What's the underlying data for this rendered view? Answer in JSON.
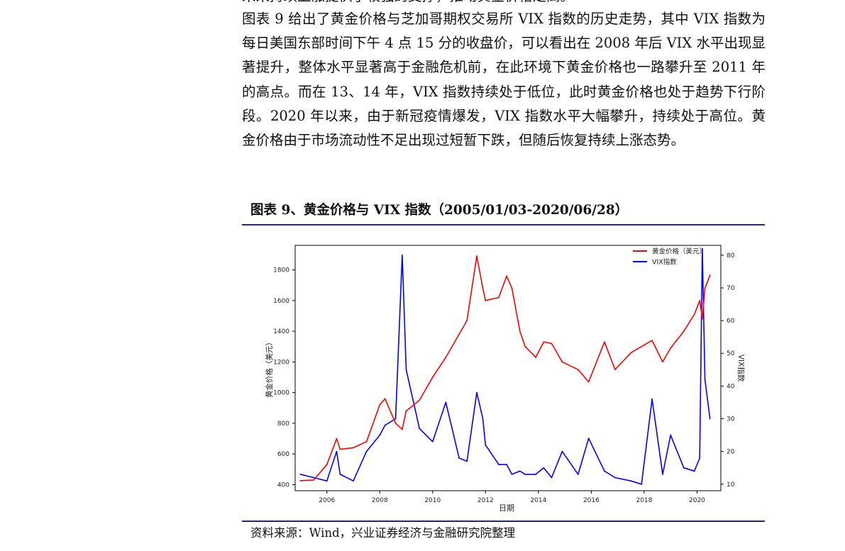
{
  "document": {
    "clipped_line": "未来持续上涨提供了较强的支撑，推动黄金价格走高。",
    "paragraph": "图表 9 给出了黄金价格与芝加哥期权交易所 VIX 指数的历史走势，其中 VIX 指数为每日美国东部时间下午 4 点 15 分的收盘价，可以看出在 2008 年后 VIX 水平出现显著提升，整体水平显著高于金融危机前，在此环境下黄金价格也一路攀升至 2011 年的高点。而在 13、14 年，VIX 指数持续处于低位，此时黄金价格也处于趋势下行阶段。2020 年以来，由于新冠疫情爆发，VIX 指数水平大幅攀升，持续处于高位。黄金价格由于市场流动性不足出现过短暂下跌，但随后恢复持续上涨态势。",
    "figure_title": "图表 9、黄金价格与 VIX 指数（2005/01/03-2020/06/28）",
    "source": "资料来源：Wind，兴业证券经济与金融研究院整理"
  },
  "colors": {
    "rule": "#1f2d6b",
    "gold_series": "#ff0000",
    "vix_series": "#0000ff"
  },
  "chart_data": {
    "type": "line",
    "title": "",
    "xlabel": "日期",
    "ylabel_left": "黄金价格（美元）",
    "ylabel_right": "VIX指数",
    "x_ticks": [
      "2006",
      "2008",
      "2010",
      "2012",
      "2014",
      "2016",
      "2018",
      "2020"
    ],
    "y_left_ticks": [
      "400",
      "600",
      "800",
      "1000",
      "1200",
      "1400",
      "1600",
      "1800"
    ],
    "y_right_ticks": [
      "10",
      "20",
      "30",
      "40",
      "50",
      "60",
      "70",
      "80"
    ],
    "xlim": [
      2004.8,
      2020.9
    ],
    "ylim_left": [
      360,
      1960
    ],
    "ylim_right": [
      8,
      83
    ],
    "legend_position": "top-right",
    "grid": false,
    "x": [
      2005.0,
      2005.5,
      2006.0,
      2006.37,
      2006.5,
      2007.0,
      2007.5,
      2008.0,
      2008.2,
      2008.6,
      2008.85,
      2009.0,
      2009.5,
      2010.0,
      2010.5,
      2011.0,
      2011.3,
      2011.67,
      2011.9,
      2012.0,
      2012.5,
      2012.8,
      2013.0,
      2013.3,
      2013.5,
      2013.9,
      2014.2,
      2014.5,
      2014.9,
      2015.5,
      2015.9,
      2016.5,
      2016.9,
      2017.5,
      2017.9,
      2018.3,
      2018.7,
      2019.0,
      2019.5,
      2019.9,
      2020.1,
      2020.2,
      2020.3,
      2020.49
    ],
    "series": [
      {
        "name": "黄金价格（美元）",
        "axis": "left",
        "color": "#ff0000",
        "values": [
          425,
          430,
          530,
          700,
          630,
          640,
          680,
          920,
          960,
          800,
          760,
          880,
          950,
          1100,
          1230,
          1380,
          1470,
          1890,
          1680,
          1600,
          1620,
          1760,
          1680,
          1400,
          1300,
          1230,
          1330,
          1320,
          1200,
          1150,
          1070,
          1330,
          1150,
          1260,
          1300,
          1340,
          1200,
          1290,
          1400,
          1510,
          1600,
          1480,
          1680,
          1765
        ]
      },
      {
        "name": "VIX指数",
        "axis": "right",
        "color": "#0000ff",
        "values": [
          13,
          12,
          11,
          20,
          13,
          11,
          20,
          25,
          28,
          30,
          80,
          45,
          27,
          23,
          35,
          18,
          17,
          38,
          30,
          22,
          16,
          16,
          13,
          14,
          13,
          13,
          15,
          12,
          20,
          13,
          24,
          14,
          12,
          11,
          10,
          36,
          13,
          25,
          15,
          14,
          18,
          82,
          42,
          30
        ]
      }
    ]
  }
}
